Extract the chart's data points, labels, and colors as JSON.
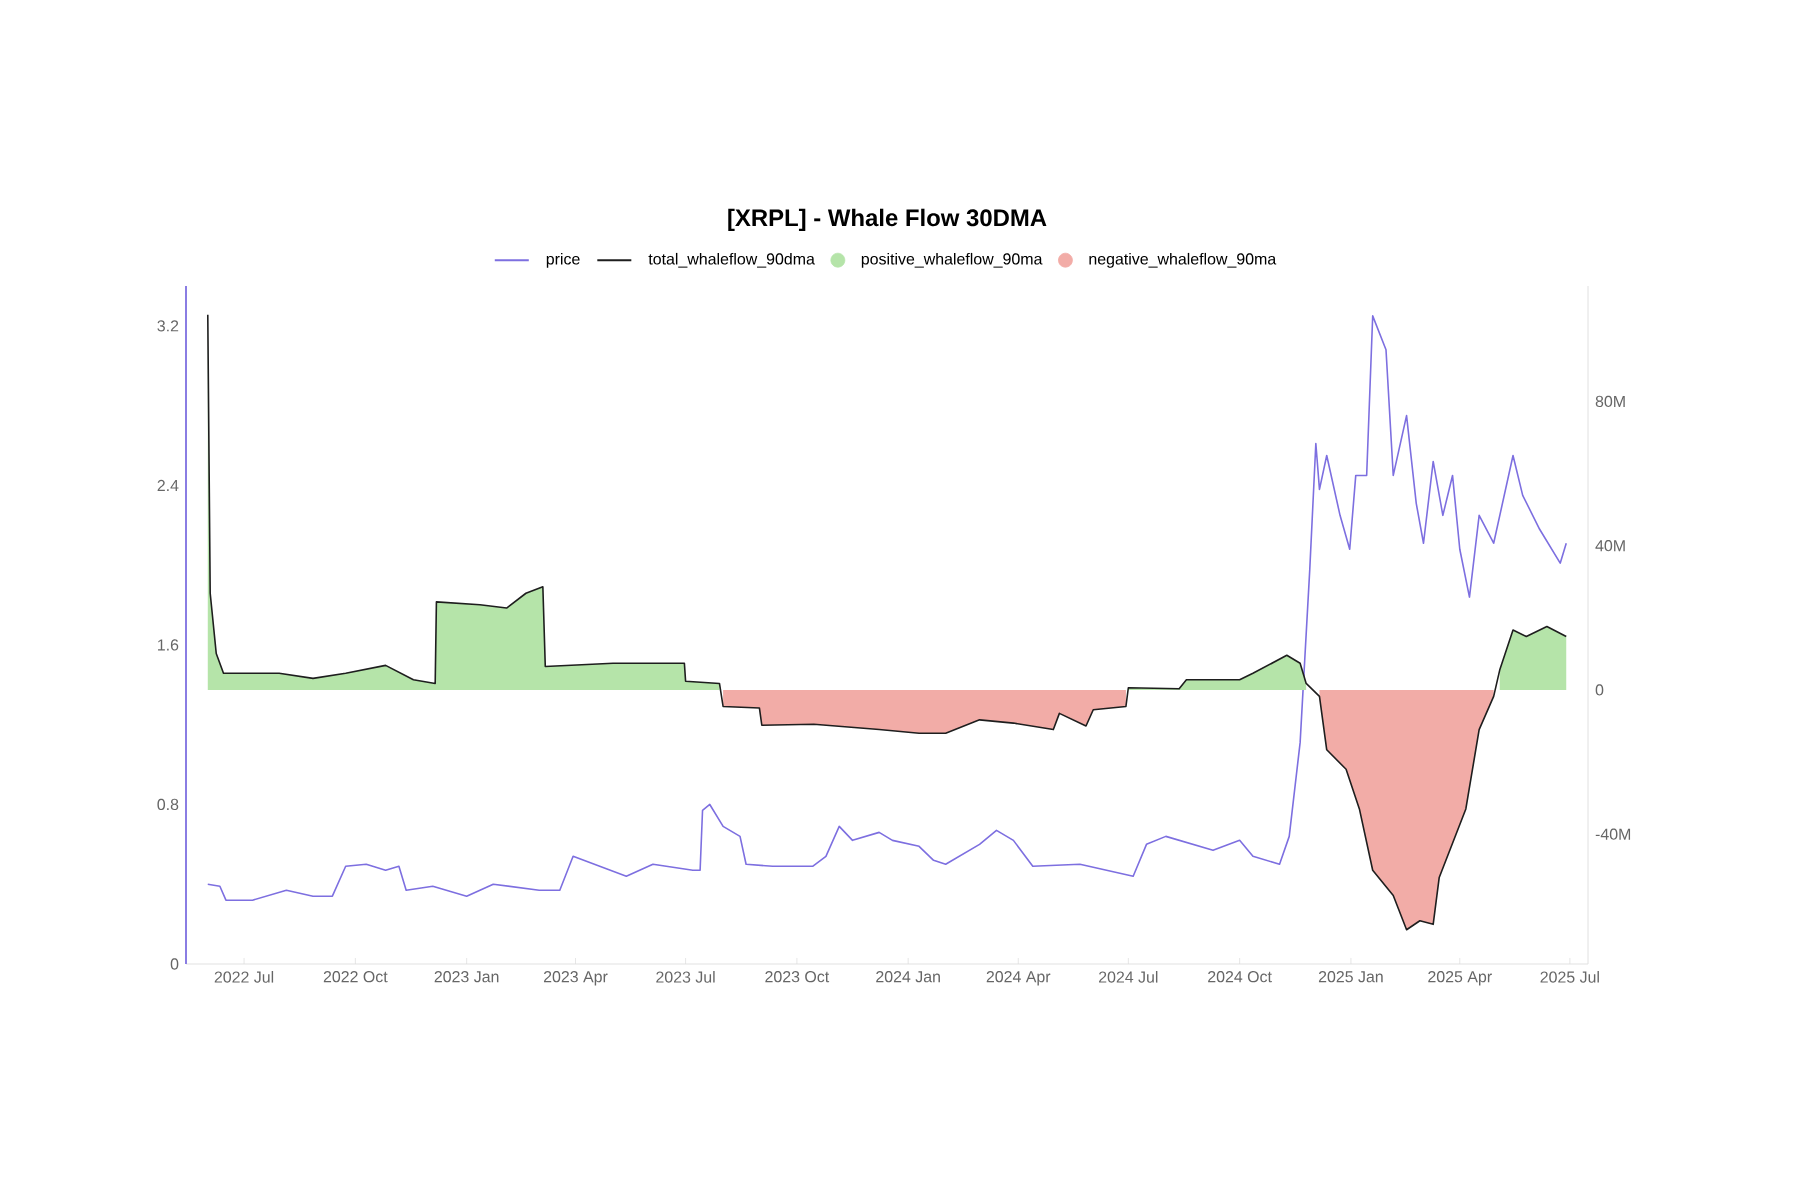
{
  "chart_data": {
    "type": "line",
    "title": "[XRPL] - Whale Flow 30DMA",
    "legend": "top",
    "xlim": [
      "2022-05-14",
      "2025-07-16"
    ],
    "xticks": [
      {
        "value": "2022-07-01",
        "label": "2022 Jul"
      },
      {
        "value": "2022-10-01",
        "label": "2022 Oct"
      },
      {
        "value": "2023-01-01",
        "label": "2023 Jan"
      },
      {
        "value": "2023-04-01",
        "label": "2023 Apr"
      },
      {
        "value": "2023-07-01",
        "label": "2023 Jul"
      },
      {
        "value": "2023-10-01",
        "label": "2023 Oct"
      },
      {
        "value": "2024-01-01",
        "label": "2024 Jan"
      },
      {
        "value": "2024-04-01",
        "label": "2024 Apr"
      },
      {
        "value": "2024-07-01",
        "label": "2024 Jul"
      },
      {
        "value": "2024-10-01",
        "label": "2024 Oct"
      },
      {
        "value": "2025-01-01",
        "label": "2025 Jan"
      },
      {
        "value": "2025-04-01",
        "label": "2025 Apr"
      },
      {
        "value": "2025-07-01",
        "label": "2025 Jul"
      }
    ],
    "ylim": [
      0,
      3.4
    ],
    "yticks": [
      0,
      0.8,
      1.6,
      2.4,
      3.2
    ],
    "y2lim": [
      -76,
      112
    ],
    "y2ticks": [
      {
        "value": -40,
        "label": "-40M"
      },
      0,
      {
        "value": 40,
        "label": "40M"
      },
      {
        "value": 80,
        "label": "80M"
      }
    ],
    "series": [
      {
        "name": "price",
        "color": "#7d6fe0",
        "axis": "y",
        "x": [
          "2022-06-01",
          "2022-06-11",
          "2022-06-16",
          "2022-07-08",
          "2022-08-05",
          "2022-08-27",
          "2022-09-12",
          "2022-09-23",
          "2022-10-10",
          "2022-10-26",
          "2022-11-06",
          "2022-11-12",
          "2022-12-04",
          "2023-01-01",
          "2023-01-23",
          "2023-03-02",
          "2023-03-19",
          "2023-03-30",
          "2023-04-21",
          "2023-05-13",
          "2023-06-04",
          "2023-07-07",
          "2023-07-13",
          "2023-07-15",
          "2023-07-21",
          "2023-08-01",
          "2023-08-15",
          "2023-08-20",
          "2023-09-11",
          "2023-10-14",
          "2023-10-25",
          "2023-11-05",
          "2023-11-16",
          "2023-12-08",
          "2023-12-19",
          "2024-01-10",
          "2024-01-22",
          "2024-02-01",
          "2024-02-29",
          "2024-03-14",
          "2024-03-28",
          "2024-04-13",
          "2024-05-22",
          "2024-07-05",
          "2024-07-16",
          "2024-08-01",
          "2024-09-09",
          "2024-10-01",
          "2024-10-12",
          "2024-11-03",
          "2024-11-11",
          "2024-11-20",
          "2024-11-28",
          "2024-12-03",
          "2024-12-06",
          "2024-12-12",
          "2024-12-23",
          "2024-12-31",
          "2025-01-05",
          "2025-01-14",
          "2025-01-19",
          "2025-01-30",
          "2025-02-05",
          "2025-02-16",
          "2025-02-24",
          "2025-03-02",
          "2025-03-10",
          "2025-03-18",
          "2025-03-26",
          "2025-04-01",
          "2025-04-09",
          "2025-04-17",
          "2025-04-29",
          "2025-05-15",
          "2025-05-23",
          "2025-06-06",
          "2025-06-23",
          "2025-06-28"
        ],
        "values": [
          0.4,
          0.39,
          0.32,
          0.32,
          0.37,
          0.34,
          0.34,
          0.49,
          0.5,
          0.47,
          0.49,
          0.37,
          0.39,
          0.34,
          0.4,
          0.37,
          0.37,
          0.54,
          0.49,
          0.44,
          0.5,
          0.47,
          0.47,
          0.77,
          0.8,
          0.69,
          0.64,
          0.5,
          0.49,
          0.49,
          0.54,
          0.69,
          0.62,
          0.66,
          0.62,
          0.59,
          0.52,
          0.5,
          0.6,
          0.67,
          0.62,
          0.49,
          0.5,
          0.44,
          0.6,
          0.64,
          0.57,
          0.62,
          0.54,
          0.5,
          0.64,
          1.11,
          1.98,
          2.61,
          2.38,
          2.55,
          2.25,
          2.08,
          2.45,
          2.45,
          3.25,
          3.08,
          2.45,
          2.75,
          2.31,
          2.11,
          2.52,
          2.25,
          2.45,
          2.08,
          1.84,
          2.25,
          2.11,
          2.55,
          2.35,
          2.18,
          2.01,
          2.11
        ]
      },
      {
        "name": "total_whaleflow_90dma",
        "color": "#1e1e1e",
        "axis": "y2",
        "x": [
          "2022-06-01",
          "2022-06-03",
          "2022-06-08",
          "2022-06-14",
          "2022-07-30",
          "2022-08-27",
          "2022-09-23",
          "2022-10-26",
          "2022-11-18",
          "2022-12-06",
          "2022-12-07",
          "2023-01-12",
          "2023-02-03",
          "2023-02-19",
          "2023-03-05",
          "2023-03-07",
          "2023-05-02",
          "2023-06-30",
          "2023-07-01",
          "2023-07-29",
          "2023-08-01",
          "2023-08-31",
          "2023-09-02",
          "2023-10-15",
          "2023-12-08",
          "2024-01-10",
          "2024-02-01",
          "2024-02-29",
          "2024-03-28",
          "2024-04-30",
          "2024-05-05",
          "2024-05-27",
          "2024-06-02",
          "2024-06-29",
          "2024-07-01",
          "2024-08-12",
          "2024-08-18",
          "2024-10-01",
          "2024-10-12",
          "2024-11-09",
          "2024-11-20",
          "2024-11-25",
          "2024-12-06",
          "2024-12-12",
          "2024-12-28",
          "2025-01-08",
          "2025-01-19",
          "2025-02-05",
          "2025-02-16",
          "2025-02-27",
          "2025-03-10",
          "2025-03-15",
          "2025-03-26",
          "2025-04-06",
          "2025-04-17",
          "2025-04-29",
          "2025-05-04",
          "2025-05-15",
          "2025-05-26",
          "2025-06-12",
          "2025-06-28"
        ],
        "values": [
          104,
          26.8,
          10.1,
          4.6,
          4.6,
          3.2,
          4.6,
          6.8,
          2.8,
          1.8,
          24.4,
          23.6,
          22.7,
          26.8,
          28.6,
          6.5,
          7.4,
          7.4,
          2.4,
          1.8,
          -4.6,
          -5,
          -9.8,
          -9.5,
          -11,
          -12,
          -12,
          -8.3,
          -9.2,
          -11,
          -6.5,
          -10,
          -5.5,
          -4.6,
          0.6,
          0.3,
          2.8,
          2.8,
          4.6,
          9.6,
          7.4,
          1.8,
          -1.8,
          -16.6,
          -22,
          -33,
          -50,
          -57,
          -66.5,
          -64,
          -65,
          -52,
          -42.5,
          -33,
          -11,
          -1.8,
          5.5,
          16.6,
          14.8,
          17.6,
          14.8
        ]
      },
      {
        "name": "positive_whaleflow_90ma",
        "type": "area",
        "color": "#b5e4a9",
        "axis": "y2",
        "x": [
          "2022-06-01",
          "2022-06-03",
          "2022-06-08",
          "2022-06-14",
          "2022-07-30",
          "2022-08-27",
          "2022-09-23",
          "2022-10-26",
          "2022-11-18",
          "2022-12-06",
          "2022-12-07",
          "2023-01-12",
          "2023-02-03",
          "2023-02-19",
          "2023-03-05",
          "2023-03-07",
          "2023-05-02",
          "2023-06-30",
          "2023-07-01",
          "2023-07-29",
          "2023-08-01",
          "2023-08-31",
          "2023-09-02",
          "2023-10-15",
          "2023-12-08",
          "2024-01-10",
          "2024-02-01",
          "2024-02-29",
          "2024-03-28",
          "2024-04-30",
          "2024-05-05",
          "2024-05-27",
          "2024-06-02",
          "2024-06-29",
          "2024-07-01",
          "2024-08-12",
          "2024-08-18",
          "2024-10-01",
          "2024-10-12",
          "2024-11-09",
          "2024-11-20",
          "2024-11-25",
          "2024-12-06",
          "2024-12-12",
          "2024-12-28",
          "2025-01-08",
          "2025-01-19",
          "2025-02-05",
          "2025-02-16",
          "2025-02-27",
          "2025-03-10",
          "2025-03-15",
          "2025-03-26",
          "2025-04-06",
          "2025-04-17",
          "2025-04-29",
          "2025-05-04",
          "2025-05-15",
          "2025-05-26",
          "2025-06-12",
          "2025-06-28"
        ],
        "values": [
          104,
          26.8,
          10.1,
          4.6,
          4.6,
          3.2,
          4.6,
          6.8,
          2.8,
          1.8,
          24.4,
          23.6,
          22.7,
          26.8,
          28.6,
          6.5,
          7.4,
          7.4,
          2.4,
          1.8,
          null,
          null,
          null,
          null,
          null,
          null,
          null,
          null,
          null,
          null,
          null,
          null,
          null,
          null,
          0.6,
          0.3,
          2.8,
          2.8,
          4.6,
          9.6,
          7.4,
          1.8,
          null,
          null,
          null,
          null,
          null,
          null,
          null,
          null,
          null,
          null,
          null,
          null,
          null,
          null,
          5.5,
          16.6,
          14.8,
          17.6,
          14.8
        ]
      },
      {
        "name": "negative_whaleflow_90ma",
        "type": "area",
        "color": "#f2aca7",
        "axis": "y2",
        "x": [
          "2023-08-01",
          "2023-08-31",
          "2023-09-02",
          "2023-10-15",
          "2023-12-08",
          "2024-01-10",
          "2024-02-01",
          "2024-02-29",
          "2024-03-28",
          "2024-04-30",
          "2024-05-05",
          "2024-05-27",
          "2024-06-02",
          "2024-06-29",
          "2024-07-01",
          "2024-12-06",
          "2024-12-12",
          "2024-12-28",
          "2025-01-08",
          "2025-01-19",
          "2025-02-05",
          "2025-02-16",
          "2025-02-27",
          "2025-03-10",
          "2025-03-15",
          "2025-03-26",
          "2025-04-06",
          "2025-04-17",
          "2025-04-29"
        ],
        "values": [
          -4.6,
          -5,
          -9.8,
          -9.5,
          -11,
          -12,
          -12,
          -8.3,
          -9.2,
          -11,
          -6.5,
          -10,
          -5.5,
          -4.6,
          null,
          -1.8,
          -16.6,
          -22,
          -33,
          -50,
          -57,
          -66.5,
          -64,
          -65,
          -52,
          -42.5,
          -33,
          -11,
          -1.8
        ]
      }
    ]
  }
}
